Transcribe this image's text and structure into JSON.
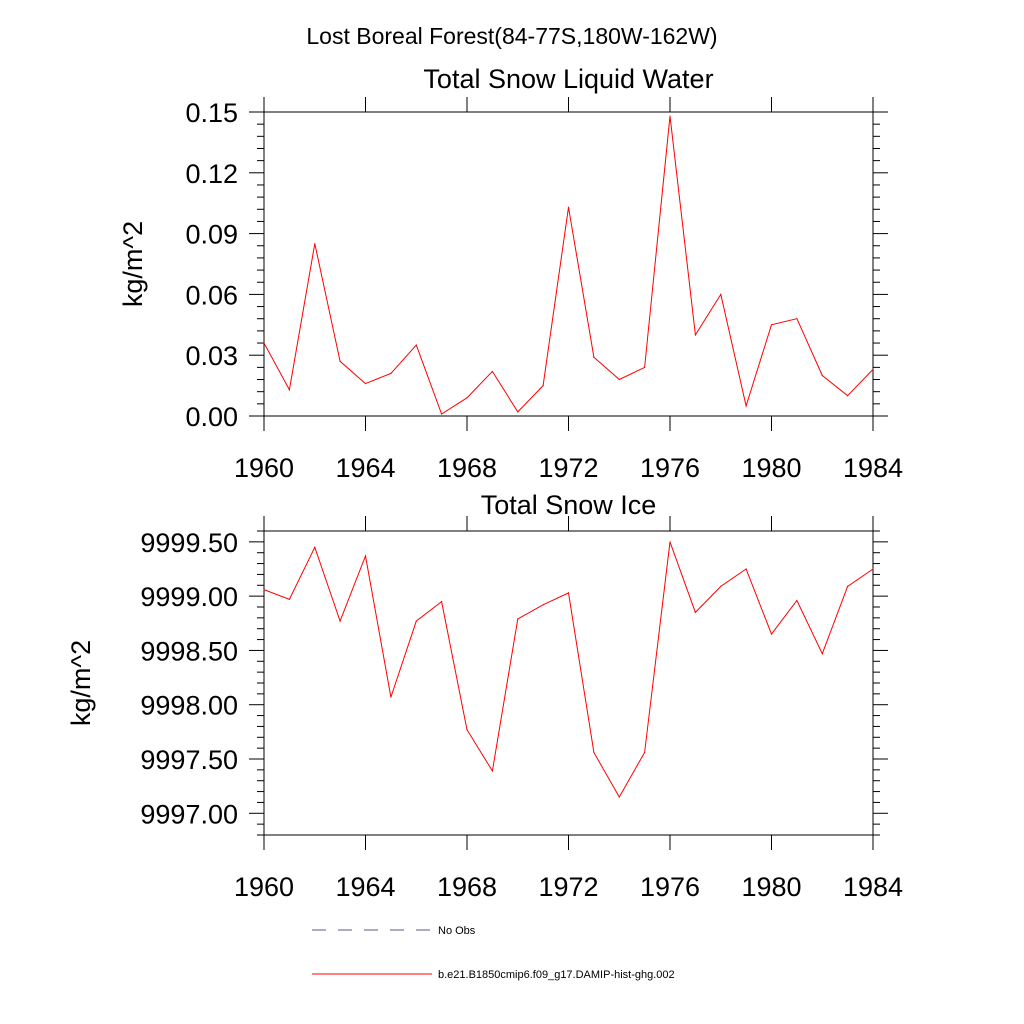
{
  "page_title": "Lost Boreal Forest(84-77S,180W-162W)",
  "legend": {
    "items": [
      {
        "label": "No Obs",
        "color": "#5a5a8a",
        "style": "dashed"
      },
      {
        "label": "b.e21.B1850cmip6.f09_g17.DAMIP-hist-ghg.002",
        "color": "#ff0000",
        "style": "solid"
      }
    ]
  },
  "chart_data": [
    {
      "type": "line",
      "title": "Total Snow Liquid Water",
      "xlabel": "",
      "ylabel": "kg/m^2",
      "xlim": [
        1960,
        1984
      ],
      "ylim": [
        0.0,
        0.15
      ],
      "x_ticks": [
        "1960",
        "1964",
        "1968",
        "1972",
        "1976",
        "1980",
        "1984"
      ],
      "y_ticks": [
        "0.00",
        "0.03",
        "0.06",
        "0.09",
        "0.12",
        "0.15"
      ],
      "grid": false,
      "series": [
        {
          "name": "b.e21.B1850cmip6.f09_g17.DAMIP-hist-ghg.002",
          "color": "#ff0000",
          "x": [
            1960,
            1961,
            1962,
            1963,
            1964,
            1965,
            1966,
            1967,
            1968,
            1969,
            1970,
            1971,
            1972,
            1973,
            1974,
            1975,
            1976,
            1977,
            1978,
            1979,
            1980,
            1981,
            1982,
            1983,
            1984
          ],
          "values": [
            0.036,
            0.013,
            0.085,
            0.027,
            0.016,
            0.021,
            0.035,
            0.001,
            0.009,
            0.022,
            0.002,
            0.015,
            0.103,
            0.029,
            0.018,
            0.024,
            0.148,
            0.04,
            0.06,
            0.005,
            0.045,
            0.048,
            0.02,
            0.01,
            0.023
          ]
        }
      ]
    },
    {
      "type": "line",
      "title": "Total Snow Ice",
      "xlabel": "",
      "ylabel": "kg/m^2",
      "xlim": [
        1960,
        1984
      ],
      "ylim": [
        9996.8,
        9999.6
      ],
      "x_ticks": [
        "1960",
        "1964",
        "1968",
        "1972",
        "1976",
        "1980",
        "1984"
      ],
      "y_ticks": [
        "9997.00",
        "9997.50",
        "9998.00",
        "9998.50",
        "9999.00",
        "9999.50"
      ],
      "grid": false,
      "series": [
        {
          "name": "b.e21.B1850cmip6.f09_g17.DAMIP-hist-ghg.002",
          "color": "#ff0000",
          "x": [
            1960,
            1961,
            1962,
            1963,
            1964,
            1965,
            1966,
            1967,
            1968,
            1969,
            1970,
            1971,
            1972,
            1973,
            1974,
            1975,
            1976,
            1977,
            1978,
            1979,
            1980,
            1981,
            1982,
            1983,
            1984
          ],
          "values": [
            9999.06,
            9998.97,
            9999.45,
            9998.77,
            9999.37,
            9998.07,
            9998.77,
            9998.95,
            9997.77,
            9997.39,
            9998.79,
            9998.92,
            9999.03,
            9997.56,
            9997.15,
            9997.56,
            9999.5,
            9998.85,
            9999.09,
            9999.25,
            9998.65,
            9998.96,
            9998.47,
            9999.09,
            9999.25
          ]
        }
      ]
    }
  ]
}
